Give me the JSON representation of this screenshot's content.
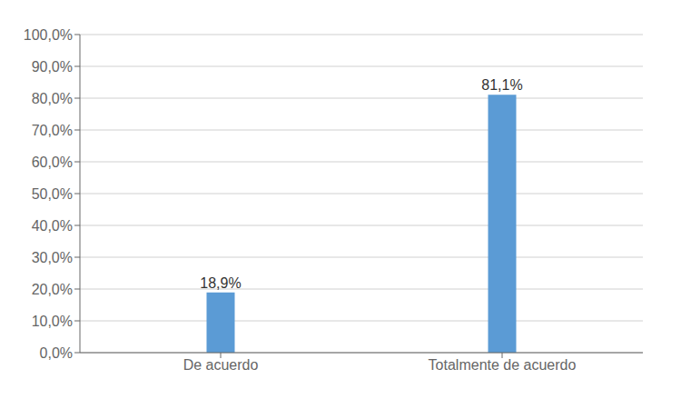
{
  "chart_data": {
    "type": "bar",
    "categories": [
      "De acuerdo",
      "Totalmente de acuerdo"
    ],
    "values": [
      18.9,
      81.1
    ],
    "value_labels": [
      "18,9%",
      "81,1%"
    ],
    "data_labels": true,
    "color": "#5B9BD5",
    "ylim": [
      0,
      100
    ],
    "yticks": [
      {
        "value": 0,
        "label": "0,0%"
      },
      {
        "value": 10,
        "label": "10,0%"
      },
      {
        "value": 20,
        "label": "20,0%"
      },
      {
        "value": 30,
        "label": "30,0%"
      },
      {
        "value": 40,
        "label": "40,0%"
      },
      {
        "value": 50,
        "label": "50,0%"
      },
      {
        "value": 60,
        "label": "60,0%"
      },
      {
        "value": 70,
        "label": "70,0%"
      },
      {
        "value": 80,
        "label": "80,0%"
      },
      {
        "value": 90,
        "label": "90,0%"
      },
      {
        "value": 100,
        "label": "100,0%"
      }
    ],
    "grid": true
  }
}
